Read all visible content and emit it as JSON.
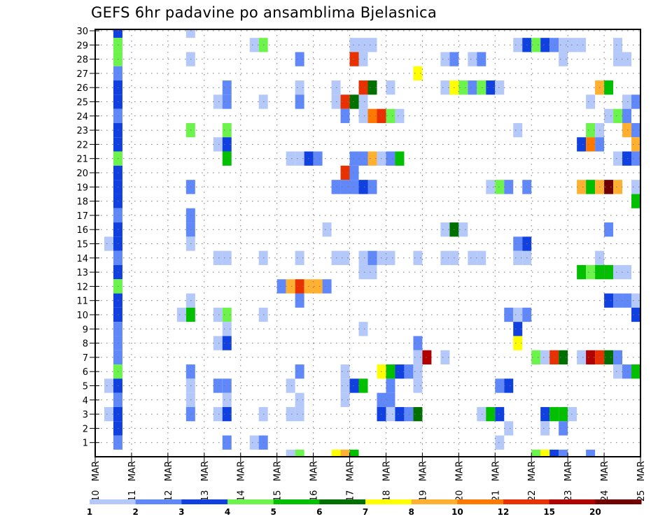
{
  "chart_data": {
    "type": "heatmap",
    "title": "GEFS 6hr padavine po ansamblima Bjelasnica",
    "xlabel": "",
    "ylabel": "",
    "x_start": "10 MAR",
    "x_step_hours": 6,
    "x_ticks": [
      "10 MAR",
      "11 MAR",
      "12 MAR",
      "13 MAR",
      "14 MAR",
      "15 MAR",
      "16 MAR",
      "17 MAR",
      "18 MAR",
      "19 MAR",
      "20 MAR",
      "21 MAR",
      "22 MAR",
      "23 MAR",
      "24 MAR",
      "25 MAR"
    ],
    "y_ticks": [
      1,
      2,
      3,
      4,
      5,
      6,
      7,
      8,
      9,
      10,
      11,
      12,
      13,
      14,
      15,
      16,
      17,
      18,
      19,
      20,
      21,
      22,
      23,
      24,
      25,
      26,
      27,
      28,
      29,
      30
    ],
    "ylim": [
      0,
      30
    ],
    "grid": true,
    "colorbar": {
      "labels": [
        "1",
        "2",
        "3",
        "4",
        "5",
        "6",
        "7",
        "8",
        "10",
        "12",
        "15",
        "20"
      ],
      "colors": [
        "#b4c8fa",
        "#6088f8",
        "#1040e0",
        "#6cf44c",
        "#00c000",
        "#007000",
        "#ffff00",
        "#ffb030",
        "#ff7800",
        "#e83000",
        "#b00000",
        "#700000"
      ]
    },
    "cells_format": "[time_index_6h_from_10MAR, member, color_index]",
    "cells": [
      [
        2,
        30,
        2
      ],
      [
        2,
        29,
        3
      ],
      [
        2,
        28,
        3
      ],
      [
        2,
        27,
        1
      ],
      [
        2,
        26,
        2
      ],
      [
        2,
        25,
        2
      ],
      [
        2,
        24,
        1
      ],
      [
        2,
        23,
        2
      ],
      [
        2,
        22,
        2
      ],
      [
        2,
        21,
        3
      ],
      [
        2,
        20,
        2
      ],
      [
        2,
        19,
        2
      ],
      [
        2,
        18,
        2
      ],
      [
        2,
        17,
        1
      ],
      [
        2,
        16,
        2
      ],
      [
        2,
        15,
        2
      ],
      [
        2,
        14,
        1
      ],
      [
        2,
        13,
        2
      ],
      [
        2,
        12,
        3
      ],
      [
        2,
        11,
        2
      ],
      [
        2,
        10,
        2
      ],
      [
        2,
        9,
        1
      ],
      [
        2,
        8,
        1
      ],
      [
        2,
        7,
        1
      ],
      [
        2,
        6,
        3
      ],
      [
        2,
        5,
        2
      ],
      [
        2,
        4,
        1
      ],
      [
        2,
        3,
        2
      ],
      [
        2,
        2,
        2
      ],
      [
        2,
        1,
        1
      ],
      [
        1,
        15,
        0
      ],
      [
        1,
        5,
        0
      ],
      [
        1,
        3,
        0
      ],
      [
        10,
        30,
        0
      ],
      [
        10,
        28,
        0
      ],
      [
        10,
        23,
        3
      ],
      [
        10,
        19,
        1
      ],
      [
        10,
        17,
        1
      ],
      [
        10,
        16,
        1
      ],
      [
        10,
        15,
        0
      ],
      [
        10,
        11,
        0
      ],
      [
        10,
        10,
        4
      ],
      [
        10,
        6,
        1
      ],
      [
        10,
        5,
        0
      ],
      [
        10,
        4,
        0
      ],
      [
        10,
        3,
        1
      ],
      [
        9,
        10,
        0
      ],
      [
        13,
        25,
        0
      ],
      [
        14,
        26,
        1
      ],
      [
        14,
        25,
        1
      ],
      [
        13,
        22,
        0
      ],
      [
        14,
        23,
        3
      ],
      [
        14,
        22,
        2
      ],
      [
        14,
        21,
        4
      ],
      [
        13,
        14,
        0
      ],
      [
        14,
        14,
        0
      ],
      [
        13,
        10,
        0
      ],
      [
        14,
        10,
        3
      ],
      [
        14,
        9,
        0
      ],
      [
        13,
        8,
        0
      ],
      [
        14,
        8,
        2
      ],
      [
        13,
        5,
        1
      ],
      [
        14,
        5,
        1
      ],
      [
        14,
        4,
        0
      ],
      [
        13,
        3,
        0
      ],
      [
        14,
        3,
        2
      ],
      [
        14,
        1,
        1
      ],
      [
        17,
        29,
        0
      ],
      [
        18,
        29,
        3
      ],
      [
        18,
        25,
        0
      ],
      [
        18,
        14,
        0
      ],
      [
        18,
        10,
        0
      ],
      [
        18,
        3,
        0
      ],
      [
        17,
        1,
        0
      ],
      [
        18,
        1,
        1
      ],
      [
        22,
        28,
        1
      ],
      [
        22,
        26,
        0
      ],
      [
        22,
        25,
        1
      ],
      [
        21,
        21,
        0
      ],
      [
        22,
        21,
        0
      ],
      [
        23,
        21,
        2
      ],
      [
        24,
        21,
        1
      ],
      [
        22,
        14,
        0
      ],
      [
        20,
        12,
        1
      ],
      [
        21,
        12,
        7
      ],
      [
        22,
        12,
        9
      ],
      [
        23,
        12,
        7
      ],
      [
        24,
        12,
        7
      ],
      [
        25,
        12,
        1
      ],
      [
        22,
        11,
        1
      ],
      [
        21,
        5,
        0
      ],
      [
        22,
        6,
        1
      ],
      [
        22,
        4,
        0
      ],
      [
        21,
        3,
        0
      ],
      [
        22,
        3,
        0
      ],
      [
        21,
        0,
        0
      ],
      [
        22,
        0,
        3
      ],
      [
        26,
        25,
        0
      ],
      [
        25,
        16,
        0
      ],
      [
        27,
        25,
        9
      ],
      [
        28,
        25,
        5
      ],
      [
        26,
        26,
        0
      ],
      [
        27,
        24,
        1
      ],
      [
        27,
        20,
        9
      ],
      [
        28,
        21,
        1
      ],
      [
        28,
        20,
        1
      ],
      [
        26,
        19,
        1
      ],
      [
        27,
        19,
        1
      ],
      [
        28,
        19,
        1
      ],
      [
        29,
        19,
        2
      ],
      [
        30,
        19,
        1
      ],
      [
        28,
        29,
        0
      ],
      [
        29,
        29,
        0
      ],
      [
        30,
        29,
        0
      ],
      [
        28,
        28,
        9
      ],
      [
        29,
        28,
        0
      ],
      [
        29,
        26,
        9
      ],
      [
        30,
        26,
        5
      ],
      [
        29,
        25,
        0
      ],
      [
        29,
        24,
        0
      ],
      [
        30,
        24,
        8
      ],
      [
        31,
        24,
        9
      ],
      [
        32,
        24,
        3
      ],
      [
        33,
        24,
        0
      ],
      [
        29,
        21,
        1
      ],
      [
        30,
        21,
        7
      ],
      [
        31,
        21,
        0
      ],
      [
        32,
        21,
        1
      ],
      [
        33,
        21,
        4
      ],
      [
        32,
        26,
        0
      ],
      [
        27,
        14,
        0
      ],
      [
        29,
        14,
        0
      ],
      [
        30,
        14,
        1
      ],
      [
        31,
        14,
        0
      ],
      [
        32,
        14,
        0
      ],
      [
        29,
        13,
        0
      ],
      [
        30,
        13,
        0
      ],
      [
        26,
        14,
        0
      ],
      [
        29,
        9,
        0
      ],
      [
        27,
        6,
        0
      ],
      [
        27,
        5,
        0
      ],
      [
        28,
        5,
        2
      ],
      [
        29,
        5,
        4
      ],
      [
        27,
        4,
        0
      ],
      [
        26,
        0,
        6
      ],
      [
        27,
        0,
        7
      ],
      [
        28,
        0,
        4
      ],
      [
        31,
        6,
        6
      ],
      [
        32,
        6,
        4
      ],
      [
        33,
        6,
        2
      ],
      [
        34,
        6,
        1
      ],
      [
        32,
        5,
        1
      ],
      [
        31,
        4,
        1
      ],
      [
        32,
        4,
        1
      ],
      [
        31,
        3,
        2
      ],
      [
        32,
        3,
        0
      ],
      [
        33,
        3,
        2
      ],
      [
        34,
        3,
        1
      ],
      [
        35,
        3,
        5
      ],
      [
        35,
        8,
        1
      ],
      [
        35,
        7,
        0
      ],
      [
        35,
        6,
        0
      ],
      [
        35,
        5,
        0
      ],
      [
        36,
        7,
        10
      ],
      [
        38,
        7,
        0
      ],
      [
        35,
        27,
        6
      ],
      [
        38,
        28,
        0
      ],
      [
        39,
        28,
        1
      ],
      [
        41,
        28,
        0
      ],
      [
        42,
        28,
        1
      ],
      [
        38,
        26,
        0
      ],
      [
        39,
        26,
        6
      ],
      [
        40,
        26,
        3
      ],
      [
        41,
        26,
        1
      ],
      [
        42,
        26,
        3
      ],
      [
        43,
        26,
        2
      ],
      [
        44,
        26,
        0
      ],
      [
        38,
        16,
        0
      ],
      [
        39,
        16,
        5
      ],
      [
        40,
        16,
        0
      ],
      [
        38,
        14,
        0
      ],
      [
        39,
        14,
        0
      ],
      [
        41,
        14,
        0
      ],
      [
        42,
        14,
        0
      ],
      [
        35,
        14,
        0
      ],
      [
        43,
        19,
        0
      ],
      [
        44,
        19,
        3
      ],
      [
        45,
        19,
        1
      ],
      [
        47,
        19,
        1
      ],
      [
        46,
        23,
        0
      ],
      [
        47,
        14,
        0
      ],
      [
        46,
        15,
        1
      ],
      [
        47,
        15,
        2
      ],
      [
        46,
        14,
        0
      ],
      [
        45,
        10,
        1
      ],
      [
        46,
        10,
        0
      ],
      [
        47,
        10,
        1
      ],
      [
        46,
        9,
        2
      ],
      [
        46,
        8,
        6
      ],
      [
        44,
        5,
        1
      ],
      [
        45,
        5,
        2
      ],
      [
        45,
        2,
        0
      ],
      [
        42,
        3,
        0
      ],
      [
        43,
        3,
        4
      ],
      [
        44,
        3,
        2
      ],
      [
        44,
        1,
        0
      ],
      [
        48,
        7,
        3
      ],
      [
        49,
        7,
        0
      ],
      [
        50,
        7,
        9
      ],
      [
        51,
        7,
        5
      ],
      [
        53,
        7,
        0
      ],
      [
        54,
        7,
        10
      ],
      [
        55,
        7,
        9
      ],
      [
        56,
        7,
        5
      ],
      [
        57,
        7,
        1
      ],
      [
        57,
        6,
        0
      ],
      [
        58,
        6,
        1
      ],
      [
        59,
        6,
        4
      ],
      [
        46,
        29,
        0
      ],
      [
        47,
        29,
        2
      ],
      [
        48,
        29,
        3
      ],
      [
        49,
        29,
        2
      ],
      [
        50,
        29,
        1
      ],
      [
        51,
        29,
        0
      ],
      [
        52,
        29,
        0
      ],
      [
        53,
        29,
        0
      ],
      [
        51,
        28,
        0
      ],
      [
        57,
        29,
        0
      ],
      [
        57,
        28,
        0
      ],
      [
        58,
        28,
        0
      ],
      [
        55,
        26,
        7
      ],
      [
        56,
        26,
        4
      ],
      [
        54,
        25,
        0
      ],
      [
        58,
        25,
        0
      ],
      [
        59,
        25,
        1
      ],
      [
        56,
        24,
        0
      ],
      [
        57,
        24,
        3
      ],
      [
        58,
        24,
        1
      ],
      [
        54,
        23,
        3
      ],
      [
        55,
        23,
        0
      ],
      [
        58,
        23,
        7
      ],
      [
        59,
        23,
        1
      ],
      [
        53,
        22,
        2
      ],
      [
        54,
        22,
        8
      ],
      [
        55,
        22,
        1
      ],
      [
        59,
        22,
        7
      ],
      [
        57,
        21,
        0
      ],
      [
        58,
        21,
        2
      ],
      [
        59,
        21,
        1
      ],
      [
        53,
        19,
        7
      ],
      [
        54,
        19,
        4
      ],
      [
        55,
        19,
        7
      ],
      [
        56,
        19,
        11
      ],
      [
        57,
        19,
        7
      ],
      [
        59,
        19,
        0
      ],
      [
        59,
        18,
        4
      ],
      [
        56,
        16,
        1
      ],
      [
        55,
        14,
        0
      ],
      [
        53,
        13,
        4
      ],
      [
        54,
        13,
        3
      ],
      [
        55,
        13,
        4
      ],
      [
        56,
        13,
        4
      ],
      [
        57,
        13,
        0
      ],
      [
        58,
        13,
        0
      ],
      [
        56,
        11,
        2
      ],
      [
        57,
        11,
        1
      ],
      [
        58,
        11,
        1
      ],
      [
        59,
        11,
        0
      ],
      [
        59,
        10,
        2
      ],
      [
        49,
        3,
        2
      ],
      [
        50,
        3,
        4
      ],
      [
        51,
        3,
        4
      ],
      [
        52,
        3,
        0
      ],
      [
        51,
        2,
        1
      ],
      [
        49,
        2,
        0
      ],
      [
        48,
        0,
        3
      ],
      [
        49,
        0,
        6
      ],
      [
        50,
        0,
        2
      ],
      [
        51,
        0,
        1
      ],
      [
        54,
        0,
        1
      ]
    ]
  }
}
